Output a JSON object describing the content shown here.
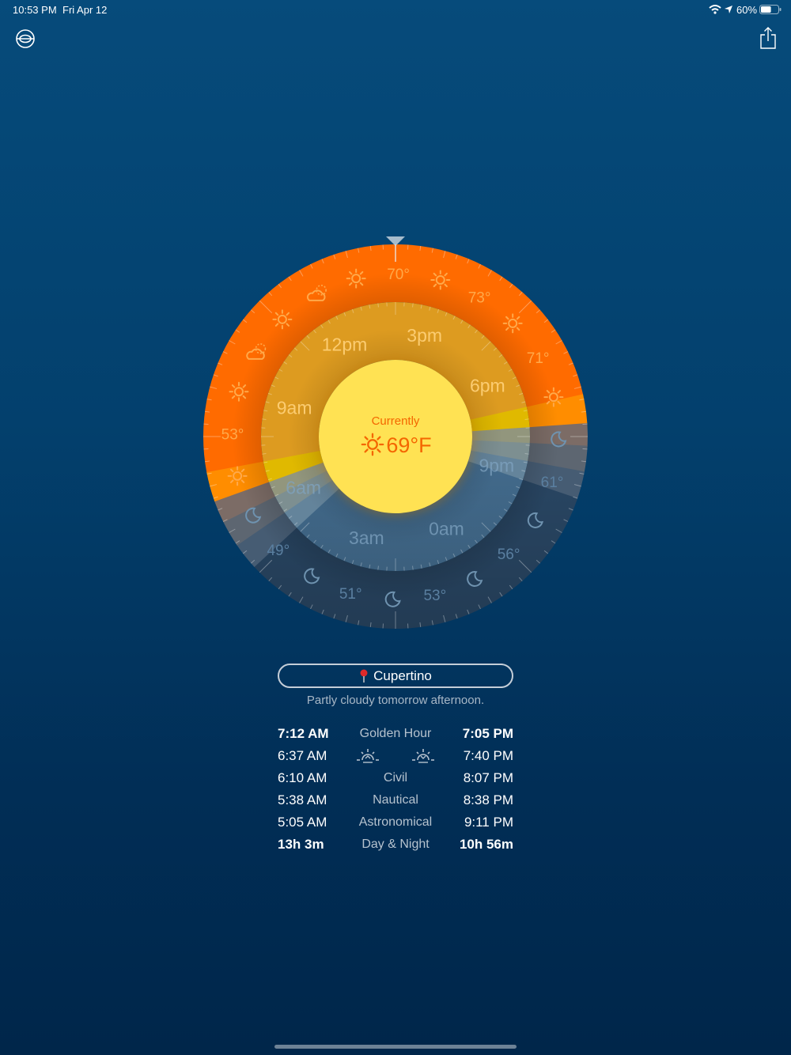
{
  "status_bar": {
    "time": "10:53 PM",
    "date": "Fri Apr 12",
    "battery": "60%",
    "battery_level": 0.6
  },
  "toolbar": {
    "left_icon": "globe-icon",
    "right_icon": "share-icon"
  },
  "dial": {
    "hour_labels": [
      {
        "h": 6,
        "label": "6am"
      },
      {
        "h": 9,
        "label": "9am"
      },
      {
        "h": 12,
        "label": "12pm"
      },
      {
        "h": 15,
        "label": "3pm"
      },
      {
        "h": 18,
        "label": "6pm"
      },
      {
        "h": 21,
        "label": "9pm"
      },
      {
        "h": 24,
        "label": "0am"
      },
      {
        "h": 27,
        "label": "3am"
      }
    ],
    "forecast": [
      {
        "h": 7,
        "icon": "sun"
      },
      {
        "h": 8,
        "temp": "53°"
      },
      {
        "h": 9,
        "icon": "sun"
      },
      {
        "h": 10,
        "icon": "cloud"
      },
      {
        "h": 11,
        "icon": "sun"
      },
      {
        "h": 12,
        "icon": "cloud"
      },
      {
        "h": 13,
        "icon": "sun"
      },
      {
        "h": 14,
        "temp": "70°"
      },
      {
        "h": 15,
        "icon": "sun"
      },
      {
        "h": 16,
        "temp": "73°"
      },
      {
        "h": 17,
        "icon": "sun"
      },
      {
        "h": 18,
        "temp": "71°"
      },
      {
        "h": 19,
        "icon": "sun"
      },
      {
        "h": 20,
        "icon": "moon"
      },
      {
        "h": 21,
        "temp": "61°"
      },
      {
        "h": 22,
        "icon": "moon"
      },
      {
        "h": 23,
        "temp": "56°"
      },
      {
        "h": 24,
        "icon": "moon"
      },
      {
        "h": 25,
        "temp": "53°"
      },
      {
        "h": 26,
        "icon": "moon"
      },
      {
        "h": 27,
        "temp": "51°"
      },
      {
        "h": 28,
        "icon": "moon"
      },
      {
        "h": 29,
        "temp": "49°"
      },
      {
        "h": 30,
        "icon": "moon"
      }
    ],
    "current": {
      "label": "Currently",
      "temp": "69°F",
      "icon": "sun"
    },
    "colors": {
      "outer_day": "#ff6b00",
      "outer_golden": "#ff8d00",
      "outer_civil": "#7c6c66",
      "outer_nautical": "#5d6671",
      "outer_astro": "#465c73",
      "outer_night": "#2a4866",
      "mid_day": "#fbb024",
      "mid_golden": "#ffd200",
      "mid_civil": "#a6aa8e",
      "mid_nautical": "#8ea2a5",
      "mid_astro": "#7296b0",
      "mid_night": "#4d7ca3",
      "core": "#ffe253",
      "current_text": "#f46600"
    }
  },
  "location": {
    "name": "Cupertino",
    "icon": "pin-icon"
  },
  "summary": "Partly cloudy tomorrow afternoon.",
  "sun_times": [
    {
      "am": "7:12 AM",
      "label": "Golden Hour",
      "pm": "7:05 PM"
    },
    {
      "am": "6:37 AM",
      "label": "",
      "pm": "7:40 PM"
    },
    {
      "am": "6:10 AM",
      "label": "Civil",
      "pm": "8:07 PM"
    },
    {
      "am": "5:38 AM",
      "label": "Nautical",
      "pm": "8:38 PM"
    },
    {
      "am": "5:05 AM",
      "label": "Astronomical",
      "pm": "9:11 PM"
    },
    {
      "am": "13h 3m",
      "label": "Day & Night",
      "pm": "10h 56m"
    }
  ]
}
